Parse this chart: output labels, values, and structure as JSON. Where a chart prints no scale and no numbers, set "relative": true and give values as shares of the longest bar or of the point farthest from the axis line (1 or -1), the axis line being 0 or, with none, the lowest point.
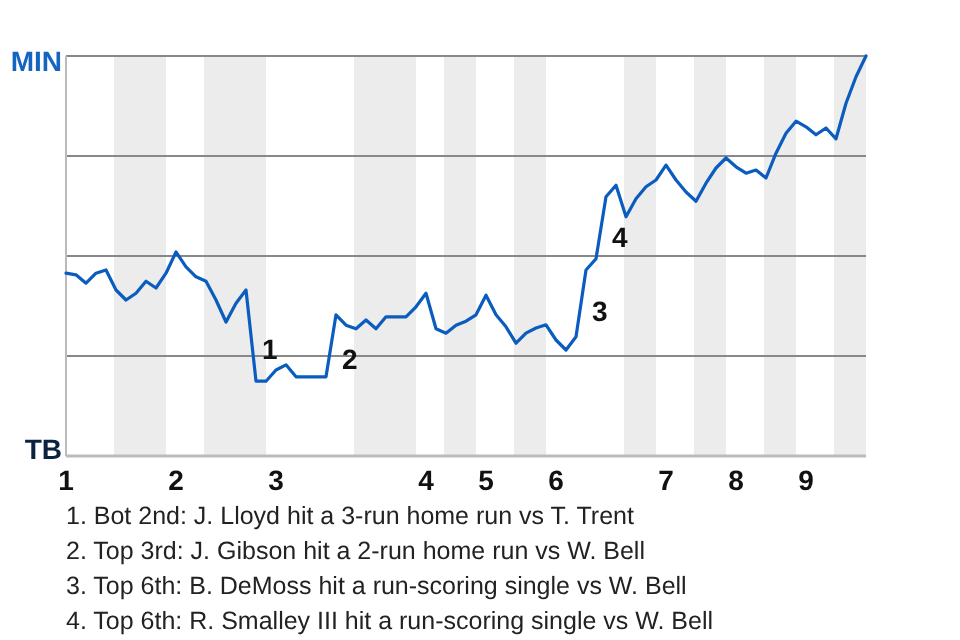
{
  "chart_data": {
    "type": "line",
    "relative": true,
    "grid": "y",
    "categories": [
      "1",
      null,
      null,
      null,
      null,
      null,
      null,
      null,
      null,
      null,
      null,
      "2",
      null,
      null,
      null,
      null,
      null,
      null,
      null,
      null,
      null,
      "3",
      null,
      null,
      null,
      null,
      null,
      null,
      null,
      null,
      null,
      null,
      null,
      null,
      null,
      null,
      "4",
      null,
      null,
      null,
      null,
      null,
      "5",
      null,
      null,
      null,
      null,
      null,
      null,
      "6",
      null,
      null,
      null,
      null,
      null,
      null,
      null,
      null,
      null,
      null,
      "7",
      null,
      null,
      null,
      null,
      null,
      null,
      "8",
      null,
      null,
      null,
      null,
      null,
      null,
      "9",
      null,
      null,
      null,
      null,
      null,
      null
    ],
    "series": [
      {
        "color": "#0b5cbf",
        "values": [
          0.457,
          0.453,
          0.432,
          0.457,
          0.465,
          0.415,
          0.39,
          0.407,
          0.437,
          0.42,
          0.457,
          0.51,
          0.473,
          0.448,
          0.437,
          0.39,
          0.335,
          0.382,
          0.415,
          0.187,
          0.187,
          0.215,
          0.228,
          0.198,
          0.198,
          0.198,
          0.198,
          0.353,
          0.327,
          0.318,
          0.34,
          0.318,
          0.348,
          0.348,
          0.348,
          0.373,
          0.407,
          0.318,
          0.307,
          0.327,
          0.337,
          0.353,
          0.402,
          0.353,
          0.323,
          0.282,
          0.307,
          0.32,
          0.328,
          0.29,
          0.265,
          0.298,
          0.465,
          0.493,
          0.648,
          0.677,
          0.598,
          0.643,
          0.673,
          0.69,
          0.727,
          0.69,
          0.66,
          0.637,
          0.682,
          0.72,
          0.745,
          0.723,
          0.707,
          0.715,
          0.695,
          0.757,
          0.807,
          0.837,
          0.823,
          0.803,
          0.82,
          0.793,
          0.882,
          0.948,
          1.0
        ]
      }
    ],
    "annotations": [
      "MIN",
      "TB",
      "1",
      "2",
      "3",
      "4",
      "1. Bot 2nd: J. Lloyd hit a 3-run home run vs T. Trent",
      "2. Top 3rd: J. Gibson hit a 2-run home run vs W. Bell",
      "3. Top 6th: B. DeMoss hit a run-scoring single vs W. Bell",
      "4. Top 6th: R. Smalley III hit a run-scoring single vs W. Bell"
    ]
  }
}
